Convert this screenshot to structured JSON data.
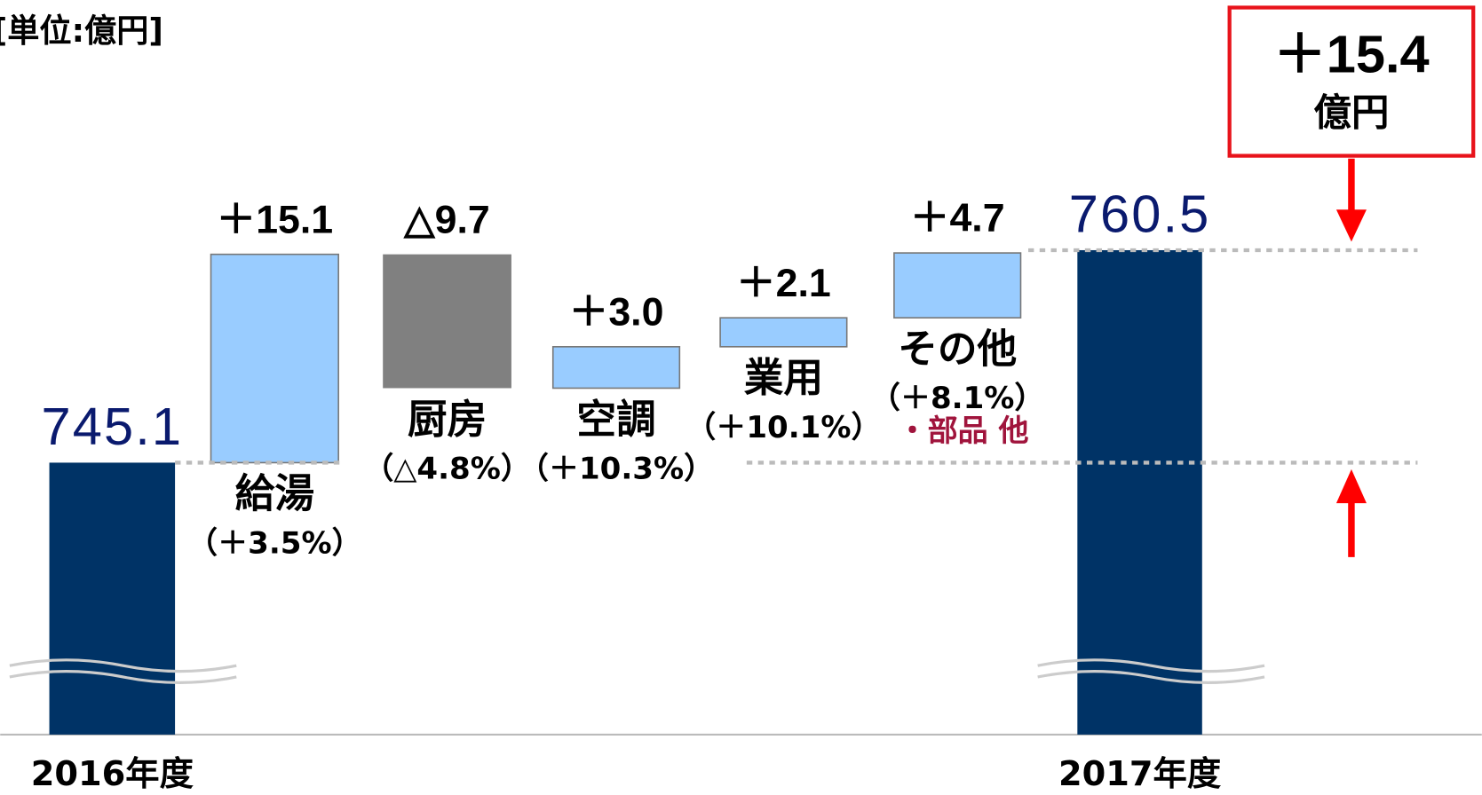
{
  "chart_data": {
    "type": "waterfall",
    "unit_label": "[単位:億円]",
    "categories": [
      "2016年度",
      "給湯",
      "厨房",
      "空調",
      "業用",
      "その他",
      "2017年度"
    ],
    "measure": [
      "absolute",
      "relative",
      "relative",
      "relative",
      "relative",
      "relative",
      "total"
    ],
    "values": [
      745.1,
      15.1,
      -9.7,
      3.0,
      2.1,
      4.7,
      760.5
    ],
    "value_labels": [
      "745.1",
      "＋15.1",
      "△9.7",
      "＋3.0",
      "＋2.1",
      "＋4.7",
      "760.5"
    ],
    "growth_labels": [
      null,
      "（＋3.5%）",
      "（△4.8%）",
      "（＋10.3%）",
      "（＋10.1%）",
      "（＋8.1%）",
      null
    ],
    "note": {
      "category": 5,
      "text": "・部品 他"
    },
    "total_change": {
      "value": 15.4,
      "label": "＋15.4",
      "unit": "億円"
    },
    "colors": {
      "total": "#003366",
      "increase": "#99ccff",
      "decrease": "#808080"
    },
    "ylim": [
      735,
      766
    ]
  }
}
